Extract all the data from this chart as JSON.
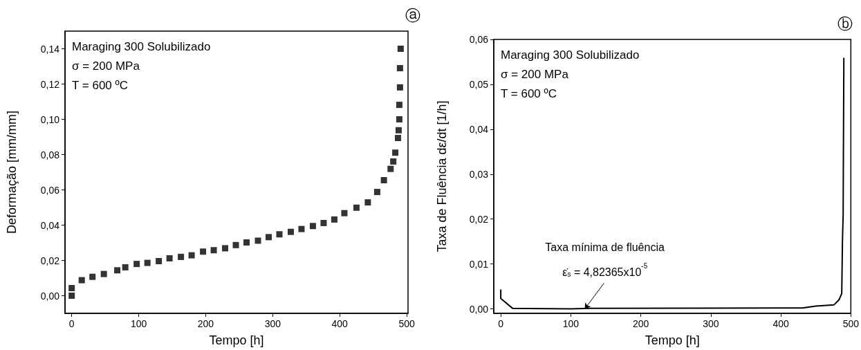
{
  "chart_data": [
    {
      "type": "scatter",
      "xlabel": "Tempo [h]",
      "ylabel": "Deformação [mm/mm]",
      "marker": "square",
      "grid": false,
      "annotations": [
        "ⓐ",
        "Maraging 300 Solubilizado",
        "σ = 200 MPa",
        "T = 600 ºC"
      ],
      "xlim": [
        -10,
        502
      ],
      "xticks": [
        0,
        100,
        200,
        300,
        400,
        500
      ],
      "ylim": [
        -0.01,
        0.15
      ],
      "yticks": [
        {
          "value": 0,
          "label": "0,00"
        },
        {
          "value": 0.02,
          "label": "0,02"
        },
        {
          "value": 0.04,
          "label": "0,04"
        },
        {
          "value": 0.06,
          "label": "0,06"
        },
        {
          "value": 0.08,
          "label": "0,08"
        },
        {
          "value": 0.1,
          "label": "0,10"
        },
        {
          "value": 0.12,
          "label": "0,12"
        },
        {
          "value": 0.14,
          "label": "0,14"
        }
      ],
      "series": [
        {
          "color": "#000000",
          "x": [
            0,
            0,
            15,
            31,
            48,
            68,
            80,
            97,
            113,
            130,
            146,
            163,
            179,
            196,
            212,
            229,
            245,
            261,
            278,
            294,
            310,
            327,
            343,
            360,
            376,
            392,
            407,
            425,
            442,
            456,
            466,
            476,
            480,
            483,
            487,
            488,
            489,
            489,
            490,
            490,
            491
          ],
          "values": [
            0,
            0.0043,
            0.0088,
            0.0107,
            0.0123,
            0.0144,
            0.0161,
            0.018,
            0.0186,
            0.0196,
            0.0212,
            0.022,
            0.0229,
            0.025,
            0.0258,
            0.0269,
            0.0287,
            0.0302,
            0.0312,
            0.0332,
            0.0348,
            0.0362,
            0.0378,
            0.0395,
            0.0412,
            0.0432,
            0.0468,
            0.0499,
            0.0529,
            0.0588,
            0.0655,
            0.0719,
            0.0761,
            0.0811,
            0.0894,
            0.0938,
            0.1,
            0.1082,
            0.1181,
            0.129,
            0.14
          ]
        }
      ]
    },
    {
      "type": "line",
      "xlabel": "Tempo [h]",
      "ylabel": "Taxa de Fluência dε/dt [1/h]",
      "marker": "none",
      "grid": false,
      "annotations": [
        "ⓑ",
        "Maraging 300 Solubilizado",
        "σ = 200 MPa",
        "T = 600 ºC",
        "Taxa mínima de fluência",
        {
          "text": "ε̇$_{s}$ = 4,82365x10$^{-5}$",
          "x": 120,
          "y": 0
        }
      ],
      "xlim": [
        -10,
        500
      ],
      "xticks": [
        0,
        100,
        200,
        300,
        400,
        500
      ],
      "ylim": [
        -0.001,
        0.06
      ],
      "yticks": [
        {
          "value": 0,
          "label": "0,00"
        },
        {
          "value": 0.01,
          "label": "0,01"
        },
        {
          "value": 0.02,
          "label": "0,02"
        },
        {
          "value": 0.03,
          "label": "0,03"
        },
        {
          "value": 0.04,
          "label": "0,04"
        },
        {
          "value": 0.05,
          "label": "0,05"
        },
        {
          "value": 0.06,
          "label": "0,06"
        }
      ],
      "series": [
        {
          "color": "#000000",
          "x": [
            0,
            0,
            17,
            100,
            129,
            393,
            431,
            450,
            476,
            483,
            487,
            488,
            489,
            490
          ],
          "values": [
            0.0042,
            0.0023,
            0.0001,
            0,
            0.0001,
            0.0002,
            0.0002,
            0.0006,
            0.0009,
            0.002,
            0.0034,
            0.015,
            0.021,
            0.0558
          ]
        }
      ]
    }
  ]
}
